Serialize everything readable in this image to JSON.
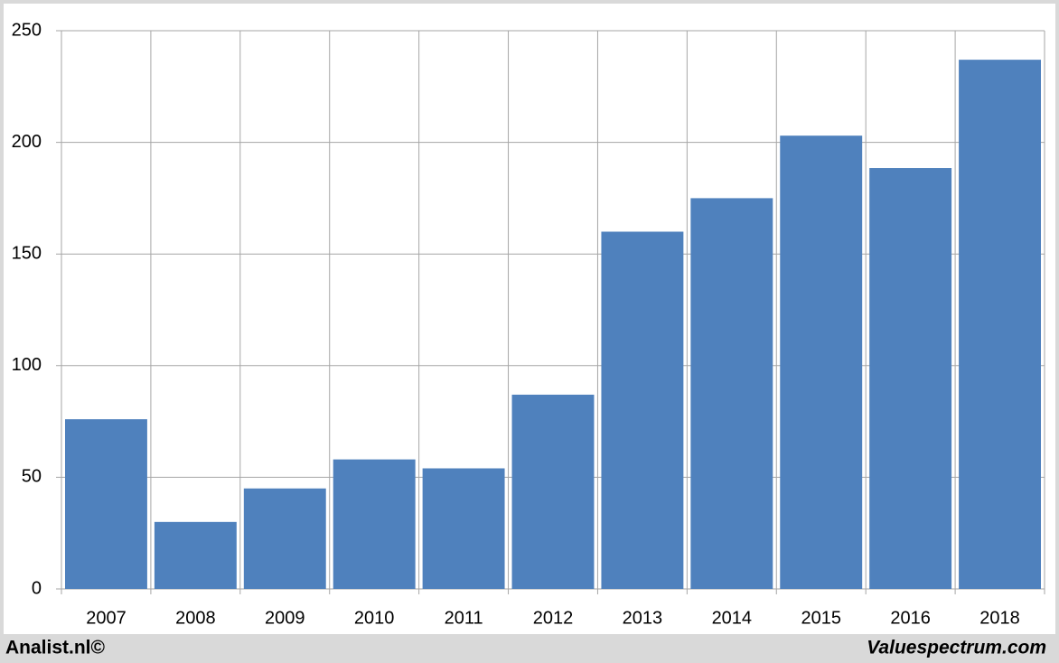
{
  "chart_data": {
    "type": "bar",
    "categories": [
      "2007",
      "2008",
      "2009",
      "2010",
      "2011",
      "2012",
      "2013",
      "2014",
      "2015",
      "2016",
      "2018"
    ],
    "values": [
      76,
      30,
      45,
      58,
      54,
      87,
      160,
      175,
      203,
      188.5,
      237
    ],
    "color": "#4f81bd",
    "ylim": [
      0,
      250
    ],
    "yticks": [
      0,
      50,
      100,
      150,
      200,
      250
    ],
    "grid": true
  },
  "footer": {
    "left": "Analist.nl©",
    "right": "Valuespectrum.com"
  }
}
